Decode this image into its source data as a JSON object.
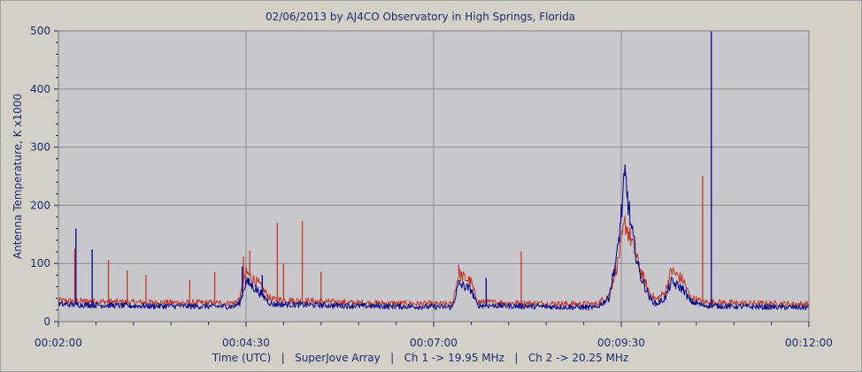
{
  "chart_data": {
    "type": "line",
    "title": "02/06/2013  by  AJ4CO Observatory  in  High Springs, Florida",
    "ylabel": "Antenna Temperature, K x1000",
    "xlabel": "Time (UTC)   |   SuperJove Array   |   Ch 1 -> 19.95 MHz   |   Ch 2 -> 20.25 MHz",
    "x_unit": "time UTC",
    "xlim": [
      "00:02:00",
      "00:12:00"
    ],
    "ylim": [
      0,
      500
    ],
    "x_ticks": [
      "00:02:00",
      "00:04:30",
      "00:07:00",
      "00:09:30",
      "00:12:00"
    ],
    "y_ticks": [
      "0",
      "100",
      "200",
      "300",
      "400",
      "500"
    ],
    "grid": true,
    "colors": {
      "plot_bg": "#c8c8cc",
      "grid": "#8c8c8c",
      "text": "#1a2e6e",
      "ch1": "#00008b",
      "ch2": "#c0392b"
    },
    "series": [
      {
        "name": "Ch 1 -> 19.95 MHz",
        "color": "#00008b",
        "baseline": [
          [
            "00:02:00",
            30
          ],
          [
            "00:03:00",
            27
          ],
          [
            "00:04:20",
            26
          ],
          [
            "00:04:25",
            32
          ],
          [
            "00:04:30",
            70
          ],
          [
            "00:04:40",
            52
          ],
          [
            "00:04:50",
            30
          ],
          [
            "00:06:00",
            27
          ],
          [
            "00:07:15",
            25
          ],
          [
            "00:07:20",
            65
          ],
          [
            "00:07:30",
            55
          ],
          [
            "00:07:35",
            28
          ],
          [
            "00:08:00",
            27
          ],
          [
            "00:09:10",
            24
          ],
          [
            "00:09:20",
            40
          ],
          [
            "00:09:27",
            120
          ],
          [
            "00:09:33",
            250
          ],
          [
            "00:09:38",
            160
          ],
          [
            "00:09:45",
            80
          ],
          [
            "00:09:53",
            40
          ],
          [
            "00:09:58",
            30
          ],
          [
            "00:10:05",
            40
          ],
          [
            "00:10:10",
            68
          ],
          [
            "00:10:20",
            55
          ],
          [
            "00:10:25",
            35
          ],
          [
            "00:10:35",
            28
          ],
          [
            "00:11:00",
            26
          ],
          [
            "00:12:00",
            24
          ]
        ],
        "spikes": [
          [
            "00:02:14",
            160
          ],
          [
            "00:02:27",
            124
          ],
          [
            "00:04:27",
            95
          ],
          [
            "00:04:43",
            80
          ],
          [
            "00:07:42",
            75
          ],
          [
            "00:09:33",
            270
          ],
          [
            "00:10:42",
            500
          ]
        ]
      },
      {
        "name": "Ch 2 -> 20.25 MHz",
        "color": "#c0392b",
        "baseline": [
          [
            "00:02:00",
            36
          ],
          [
            "00:03:00",
            33
          ],
          [
            "00:04:20",
            32
          ],
          [
            "00:04:25",
            40
          ],
          [
            "00:04:30",
            85
          ],
          [
            "00:04:40",
            65
          ],
          [
            "00:04:50",
            38
          ],
          [
            "00:06:00",
            32
          ],
          [
            "00:07:15",
            30
          ],
          [
            "00:07:20",
            82
          ],
          [
            "00:07:30",
            68
          ],
          [
            "00:07:35",
            34
          ],
          [
            "00:08:00",
            32
          ],
          [
            "00:09:10",
            30
          ],
          [
            "00:09:20",
            45
          ],
          [
            "00:09:27",
            100
          ],
          [
            "00:09:33",
            170
          ],
          [
            "00:09:38",
            140
          ],
          [
            "00:09:45",
            90
          ],
          [
            "00:09:53",
            48
          ],
          [
            "00:09:58",
            38
          ],
          [
            "00:10:05",
            50
          ],
          [
            "00:10:10",
            88
          ],
          [
            "00:10:20",
            70
          ],
          [
            "00:10:25",
            42
          ],
          [
            "00:10:35",
            34
          ],
          [
            "00:11:00",
            32
          ],
          [
            "00:12:00",
            30
          ]
        ],
        "spikes": [
          [
            "00:02:13",
            125
          ],
          [
            "00:02:40",
            106
          ],
          [
            "00:02:55",
            88
          ],
          [
            "00:03:10",
            80
          ],
          [
            "00:03:45",
            72
          ],
          [
            "00:04:05",
            85
          ],
          [
            "00:04:28",
            112
          ],
          [
            "00:04:33",
            122
          ],
          [
            "00:04:55",
            170
          ],
          [
            "00:05:00",
            100
          ],
          [
            "00:05:15",
            173
          ],
          [
            "00:05:30",
            86
          ],
          [
            "00:07:20",
            98
          ],
          [
            "00:08:10",
            121
          ],
          [
            "00:10:35",
            250
          ]
        ]
      }
    ]
  }
}
